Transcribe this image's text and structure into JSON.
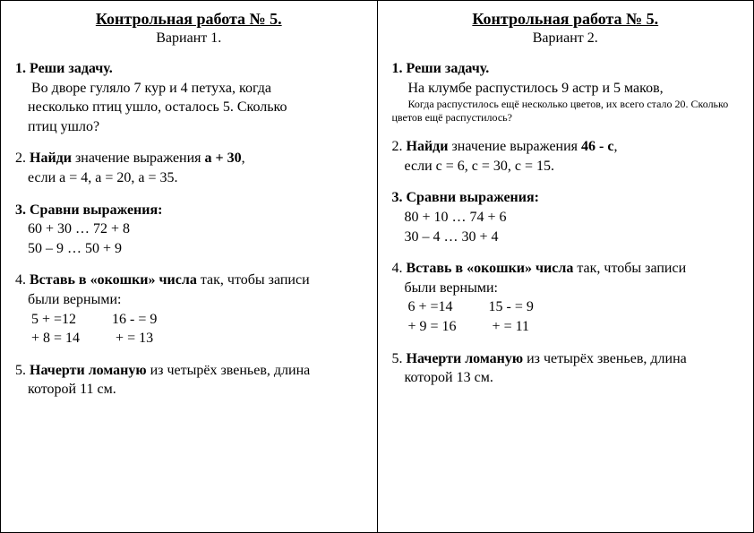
{
  "left": {
    "title": "Контрольная работа № 5.",
    "subtitle": "Вариант 1.",
    "t1_lead": "1. Реши задачу.",
    "t1_body1": "Во дворе гуляло 7 кур и 4 петуха, когда",
    "t1_body2": "несколько птиц ушло, осталось 5. Сколько",
    "t1_body3": "птиц ушло?",
    "t2_a": "2. ",
    "t2_b": "Найди",
    "t2_c": " значение выражения    ",
    "t2_d": "a + 30",
    "t2_e": ",",
    "t2_line2": "если a = 4,   a = 20,   a = 35.",
    "t3_lead": "3. Сравни выражения:",
    "t3_l1": "60 + 30 … 72 + 8",
    "t3_l2": "50 – 9 … 50 + 9",
    "t4_a": "4. ",
    "t4_b": "Вставь в «окошки» числа",
    "t4_c": " так, чтобы записи",
    "t4_line2": "были верными:",
    "t4_eq1": "5 +   =12",
    "t4_eq2": "16 -   = 9",
    "t4_eq3": "  + 8 = 14",
    "t4_eq4": "  +   = 13",
    "t5_a": "5. ",
    "t5_b": "Начерти ломаную",
    "t5_c": " из четырёх звеньев, длина",
    "t5_line2": "которой 11 см."
  },
  "right": {
    "title": "Контрольная работа № 5.",
    "subtitle": "Вариант 2.",
    "t1_lead": "1. Реши задачу.",
    "t1_body1": "На клумбе распустилось 9 астр и 5 маков,",
    "t1_small1": "Когда распустилось ещё несколько цветов, их всего стало 20. Сколько",
    "t1_small2": "цветов ещё распустилось?",
    "t2_a": "2. ",
    "t2_b": "Найди",
    "t2_c": " значение выражения    ",
    "t2_d": "46 - c",
    "t2_e": ",",
    "t2_line2": "если  c = 6,   c = 30,   c = 15.",
    "t3_lead": "3. Сравни выражения:",
    "t3_l1": "80 + 10 … 74 + 6",
    "t3_l2": "30 – 4 … 30 + 4",
    "t4_a": "4. ",
    "t4_b": "Вставь в «окошки» числа",
    "t4_c": " так, чтобы записи",
    "t4_line2": "были верными:",
    "t4_eq1": "6 +   =14",
    "t4_eq2": "15 -   = 9",
    "t4_eq3": "  + 9 = 16",
    "t4_eq4": "  +   = 11",
    "t5_a": "5. ",
    "t5_b": "Начерти ломаную",
    "t5_c": " из четырёх звеньев, длина",
    "t5_line2": "которой 13 см."
  }
}
